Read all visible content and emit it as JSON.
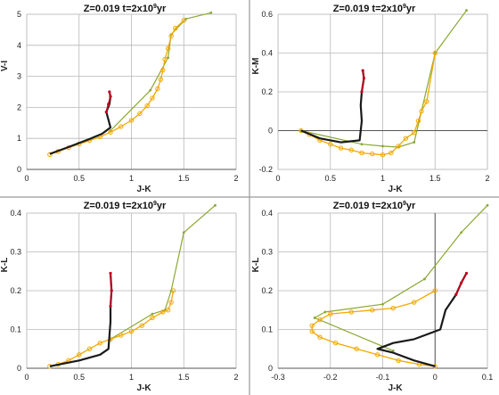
{
  "chart_data": [
    {
      "type": "line",
      "title": "Z=0.019   t=2x10",
      "title_sup": "9",
      "title_suffix": "yr",
      "xlabel": "J-K",
      "ylabel": "V-I",
      "xlim": [
        0,
        2
      ],
      "ylim": [
        0,
        5
      ],
      "xticks": [
        0,
        0.5,
        1,
        1.5,
        2
      ],
      "yticks": [
        0,
        1,
        2,
        3,
        4,
        5
      ],
      "xtick_labels": [
        "0",
        "0.5",
        "1",
        "1.5",
        "2"
      ],
      "ytick_labels": [
        "0",
        "1",
        "2",
        "3",
        "4",
        "5"
      ],
      "grid": true,
      "colors": {
        "green": "#8aa832",
        "orange": "#f2a900",
        "black": "#1a1a1a",
        "red": "#c0001c",
        "grid": "#b8b8b8"
      },
      "series": [
        {
          "style": "green",
          "x": [
            0.8,
            1.18,
            1.35,
            1.38,
            1.52,
            1.76
          ],
          "y": [
            1.25,
            2.55,
            3.6,
            4.35,
            4.85,
            5.05
          ]
        },
        {
          "style": "orange",
          "x": [
            0.22,
            0.3,
            0.4,
            0.5,
            0.6,
            0.7,
            0.8,
            0.9,
            1.0,
            1.08,
            1.15,
            1.2,
            1.25,
            1.28,
            1.3,
            1.32,
            1.35,
            1.38,
            1.42,
            1.5
          ],
          "y": [
            0.48,
            0.58,
            0.7,
            0.82,
            0.93,
            1.05,
            1.2,
            1.38,
            1.58,
            1.8,
            2.05,
            2.3,
            2.6,
            2.9,
            3.2,
            3.55,
            3.9,
            4.3,
            4.55,
            4.8
          ]
        },
        {
          "style": "black",
          "x": [
            0.22,
            0.4,
            0.6,
            0.72,
            0.8,
            0.78,
            0.76,
            0.79,
            0.8,
            0.79
          ],
          "y": [
            0.5,
            0.72,
            0.98,
            1.15,
            1.35,
            1.6,
            1.85,
            2.1,
            2.35,
            2.5
          ]
        },
        {
          "style": "red",
          "x": [
            0.76,
            0.78,
            0.8,
            0.79
          ],
          "y": [
            1.85,
            2.1,
            2.35,
            2.5
          ]
        }
      ]
    },
    {
      "type": "line",
      "title": "Z=0.019   t=2x10",
      "title_sup": "9",
      "title_suffix": "yr",
      "xlabel": "J-K",
      "ylabel": "K-M",
      "xlim": [
        0,
        2
      ],
      "ylim": [
        -0.2,
        0.6
      ],
      "xticks": [
        0,
        0.5,
        1,
        1.5,
        2
      ],
      "yticks": [
        -0.2,
        0,
        0.2,
        0.4,
        0.6
      ],
      "xtick_labels": [
        "0",
        "0.5",
        "1",
        "1.5",
        "2"
      ],
      "ytick_labels": [
        "-0.2",
        "0",
        "0.2",
        "0.4",
        "0.6"
      ],
      "grid": true,
      "colors": {
        "green": "#8aa832",
        "orange": "#f2a900",
        "black": "#1a1a1a",
        "red": "#c0001c",
        "grid": "#b8b8b8"
      },
      "series": [
        {
          "style": "green",
          "x": [
            0.22,
            0.8,
            1.0,
            1.15,
            1.3,
            1.5,
            1.8
          ],
          "y": [
            0.0,
            -0.07,
            -0.08,
            -0.085,
            -0.06,
            0.4,
            0.62
          ]
        },
        {
          "style": "orange",
          "x": [
            0.22,
            0.3,
            0.4,
            0.5,
            0.6,
            0.7,
            0.8,
            0.9,
            1.0,
            1.08,
            1.15,
            1.22,
            1.3,
            1.34,
            1.37,
            1.42,
            1.5
          ],
          "y": [
            0.0,
            -0.02,
            -0.05,
            -0.07,
            -0.09,
            -0.1,
            -0.115,
            -0.12,
            -0.125,
            -0.115,
            -0.08,
            -0.04,
            -0.01,
            0.05,
            0.1,
            0.15,
            0.4
          ]
        },
        {
          "style": "black",
          "x": [
            0.22,
            0.4,
            0.6,
            0.78,
            0.8,
            0.79,
            0.8,
            0.82,
            0.81
          ],
          "y": [
            0.0,
            -0.04,
            -0.06,
            -0.05,
            0.05,
            0.13,
            0.2,
            0.27,
            0.31
          ]
        },
        {
          "style": "red",
          "x": [
            0.8,
            0.82,
            0.81
          ],
          "y": [
            0.2,
            0.27,
            0.31
          ]
        }
      ]
    },
    {
      "type": "line",
      "title": "Z=0.019   t=2x10",
      "title_sup": "9",
      "title_suffix": "yr",
      "xlabel": "J-K",
      "ylabel": "K-L",
      "xlim": [
        0,
        2
      ],
      "ylim": [
        0,
        0.4
      ],
      "xticks": [
        0,
        0.5,
        1,
        1.5,
        2
      ],
      "yticks": [
        0,
        0.1,
        0.2,
        0.3,
        0.4
      ],
      "xtick_labels": [
        "0",
        "0.5",
        "1",
        "1.5",
        "2"
      ],
      "ytick_labels": [
        "0",
        "0.1",
        "0.2",
        "0.3",
        "0.4"
      ],
      "grid": true,
      "colors": {
        "green": "#8aa832",
        "orange": "#f2a900",
        "black": "#1a1a1a",
        "red": "#c0001c",
        "grid": "#b8b8b8"
      },
      "series": [
        {
          "style": "green",
          "x": [
            0.8,
            1.2,
            1.32,
            1.38,
            1.5,
            1.8
          ],
          "y": [
            0.075,
            0.14,
            0.15,
            0.2,
            0.35,
            0.42
          ]
        },
        {
          "style": "orange",
          "x": [
            0.22,
            0.3,
            0.4,
            0.5,
            0.6,
            0.7,
            0.8,
            0.9,
            1.0,
            1.1,
            1.2,
            1.3,
            1.35,
            1.38,
            1.4
          ],
          "y": [
            0.005,
            0.01,
            0.02,
            0.035,
            0.05,
            0.065,
            0.075,
            0.085,
            0.095,
            0.11,
            0.13,
            0.145,
            0.15,
            0.17,
            0.2
          ]
        },
        {
          "style": "black",
          "x": [
            0.22,
            0.5,
            0.7,
            0.78,
            0.8,
            0.8,
            0.81,
            0.8
          ],
          "y": [
            0.005,
            0.02,
            0.035,
            0.05,
            0.12,
            0.16,
            0.2,
            0.245
          ]
        },
        {
          "style": "red",
          "x": [
            0.8,
            0.81,
            0.8
          ],
          "y": [
            0.16,
            0.2,
            0.245
          ]
        }
      ]
    },
    {
      "type": "line",
      "title": "Z=0.019   t=2x10",
      "title_sup": "9",
      "title_suffix": "yr",
      "xlabel": "J-K",
      "ylabel": "K-L",
      "xlim": [
        -0.3,
        0.1
      ],
      "ylim": [
        0,
        0.4
      ],
      "xticks": [
        -0.3,
        -0.2,
        -0.1,
        0,
        0.1
      ],
      "yticks": [
        0,
        0.1,
        0.2,
        0.3,
        0.4
      ],
      "xtick_labels": [
        "-0.3",
        "-0.2",
        "-0.1",
        "0",
        "0.1"
      ],
      "ytick_labels": [
        "0",
        "0.1",
        "0.2",
        "0.3",
        "0.4"
      ],
      "grid": true,
      "colors": {
        "green": "#8aa832",
        "orange": "#f2a900",
        "black": "#1a1a1a",
        "red": "#c0001c",
        "grid": "#b8b8b8"
      },
      "series": [
        {
          "style": "green",
          "x": [
            -0.08,
            -0.23,
            -0.21,
            -0.1,
            -0.02,
            0.05,
            0.1
          ],
          "y": [
            0.045,
            0.13,
            0.145,
            0.165,
            0.23,
            0.35,
            0.42
          ]
        },
        {
          "style": "orange",
          "x": [
            0.0,
            -0.03,
            -0.07,
            -0.11,
            -0.15,
            -0.19,
            -0.22,
            -0.235,
            -0.235,
            -0.22,
            -0.2,
            -0.16,
            -0.12,
            -0.08,
            -0.04,
            0.0
          ],
          "y": [
            0.005,
            0.01,
            0.02,
            0.035,
            0.05,
            0.065,
            0.08,
            0.095,
            0.11,
            0.125,
            0.14,
            0.145,
            0.15,
            0.155,
            0.17,
            0.2
          ]
        },
        {
          "style": "black",
          "x": [
            0.0,
            -0.04,
            -0.08,
            -0.11,
            -0.08,
            -0.04,
            0.01,
            0.02,
            0.04,
            0.05,
            0.06
          ],
          "y": [
            0.005,
            0.02,
            0.04,
            0.05,
            0.065,
            0.075,
            0.1,
            0.15,
            0.19,
            0.22,
            0.245
          ]
        },
        {
          "style": "red",
          "x": [
            0.04,
            0.05,
            0.06
          ],
          "y": [
            0.19,
            0.22,
            0.245
          ]
        }
      ]
    }
  ]
}
